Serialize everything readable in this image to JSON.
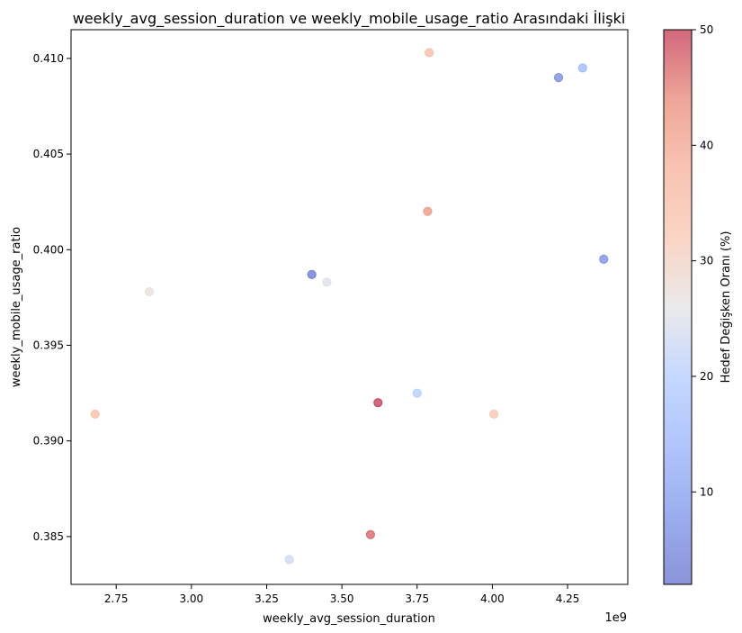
{
  "chart_data": {
    "type": "scatter",
    "title": "weekly_avg_session_duration ve weekly_mobile_usage_ratio Arasındaki İlişki",
    "xlabel": "weekly_avg_session_duration",
    "ylabel": "weekly_mobile_usage_ratio",
    "x_offset_label": "1e9",
    "xlim": [
      2.6,
      4.45
    ],
    "ylim": [
      0.3825,
      0.4115
    ],
    "xticks": [
      2.75,
      3.0,
      3.25,
      3.5,
      3.75,
      4.0,
      4.25
    ],
    "xtick_labels": [
      "2.75",
      "3.00",
      "3.25",
      "3.50",
      "3.75",
      "4.00",
      "4.25"
    ],
    "yticks": [
      0.385,
      0.39,
      0.395,
      0.4,
      0.405,
      0.41
    ],
    "ytick_labels": [
      "0.385",
      "0.390",
      "0.395",
      "0.400",
      "0.405",
      "0.410"
    ],
    "colorbar": {
      "label": "Hedef Değişken Oranı (%)",
      "colormap": "coolwarm",
      "alpha": 0.6,
      "range": [
        2,
        50
      ],
      "ticks": [
        10,
        20,
        30,
        40,
        50
      ],
      "tick_labels": [
        "10",
        "20",
        "30",
        "40",
        "50"
      ]
    },
    "points": [
      {
        "x": 3.79,
        "y": 0.4103,
        "c": 36
      },
      {
        "x": 4.22,
        "y": 0.409,
        "c": 6
      },
      {
        "x": 4.3,
        "y": 0.4095,
        "c": 15
      },
      {
        "x": 3.785,
        "y": 0.402,
        "c": 42
      },
      {
        "x": 4.37,
        "y": 0.3995,
        "c": 7
      },
      {
        "x": 3.4,
        "y": 0.3987,
        "c": 3
      },
      {
        "x": 3.45,
        "y": 0.3983,
        "c": 25
      },
      {
        "x": 2.86,
        "y": 0.3978,
        "c": 27
      },
      {
        "x": 3.75,
        "y": 0.3925,
        "c": 20
      },
      {
        "x": 3.62,
        "y": 0.392,
        "c": 50
      },
      {
        "x": 2.68,
        "y": 0.3914,
        "c": 35
      },
      {
        "x": 4.005,
        "y": 0.3914,
        "c": 33
      },
      {
        "x": 3.595,
        "y": 0.3851,
        "c": 47
      },
      {
        "x": 3.325,
        "y": 0.3838,
        "c": 23
      }
    ]
  }
}
